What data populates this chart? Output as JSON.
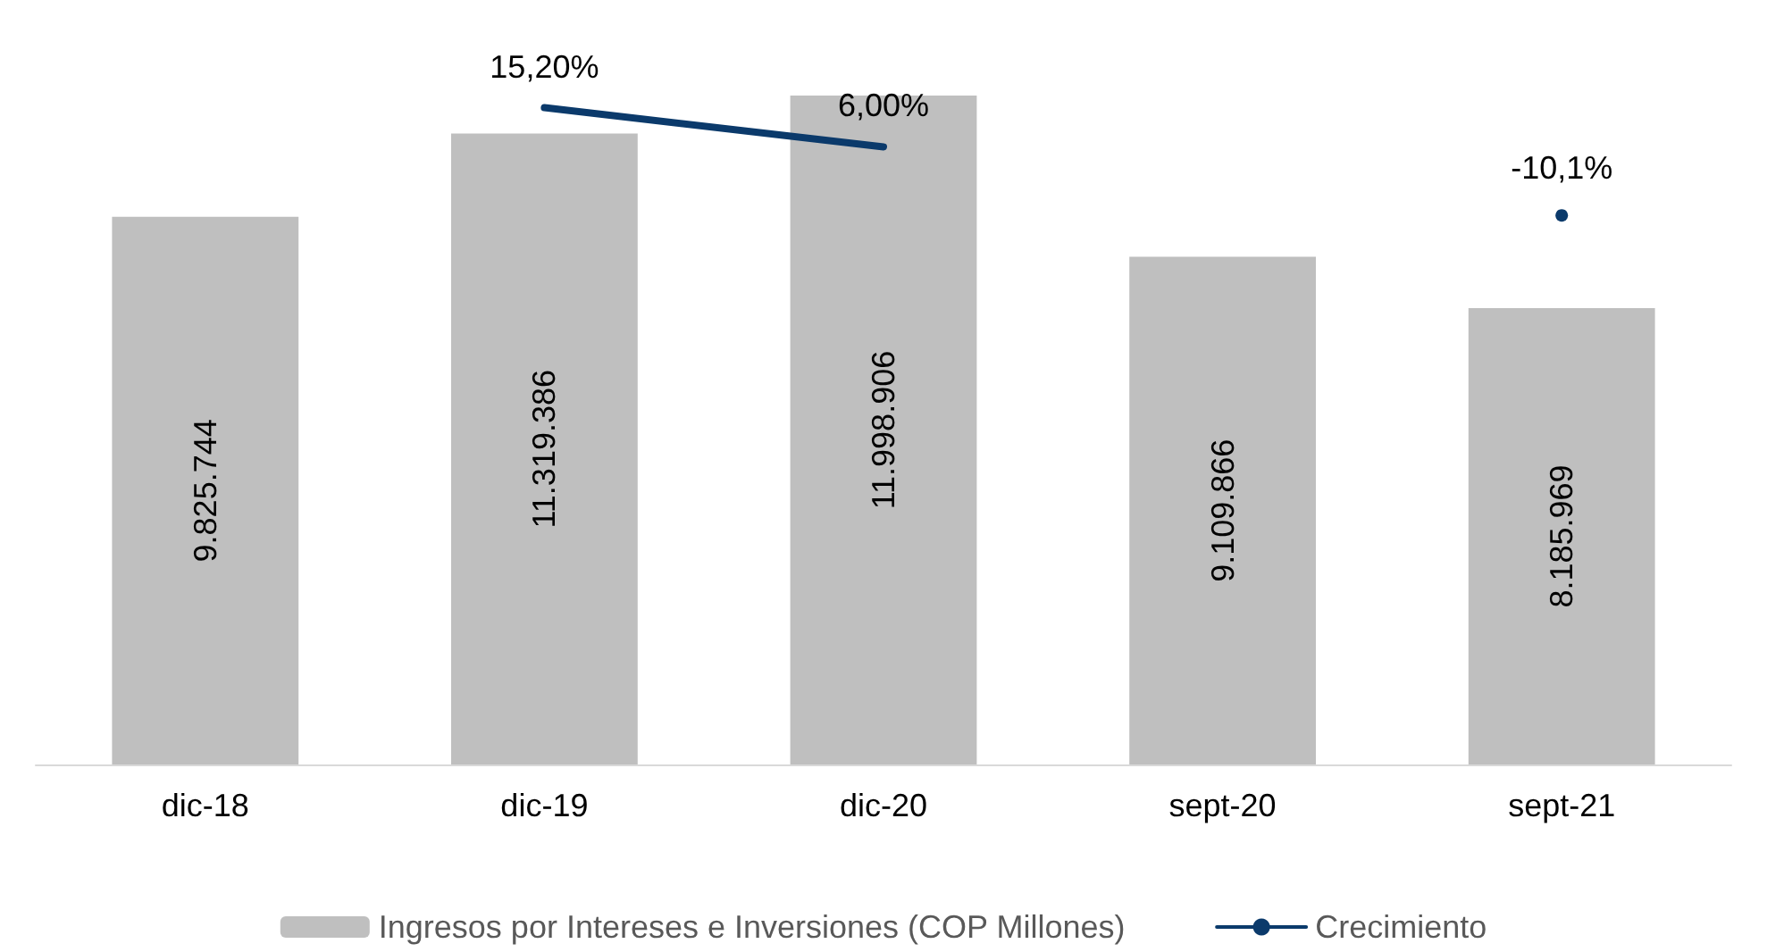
{
  "chart_data": {
    "type": "bar",
    "categories": [
      "dic-18",
      "dic-19",
      "dic-20",
      "sept-20",
      "sept-21"
    ],
    "series": [
      {
        "name": "Ingresos por Intereses e Inversiones (COP Millones)",
        "color": "#bfbfbf",
        "values": [
          9825744,
          11319386,
          11998906,
          9109866,
          8185969
        ],
        "value_labels": [
          "9.825.744",
          "11.319.386",
          "11.998.906",
          "9.109.866",
          "8.185.969"
        ]
      },
      {
        "name": "Crecimiento",
        "type": "line",
        "axis": "y2",
        "color": "#0b3a6b",
        "values": [
          null,
          15.2,
          6.0,
          null,
          -10.1
        ],
        "value_labels": [
          null,
          "15,20%",
          "6,00%",
          null,
          "-10,1%"
        ]
      }
    ],
    "tick_labels": "x",
    "grid": false,
    "legend": "bottom",
    "marker": "none",
    "line_style": "solid"
  }
}
